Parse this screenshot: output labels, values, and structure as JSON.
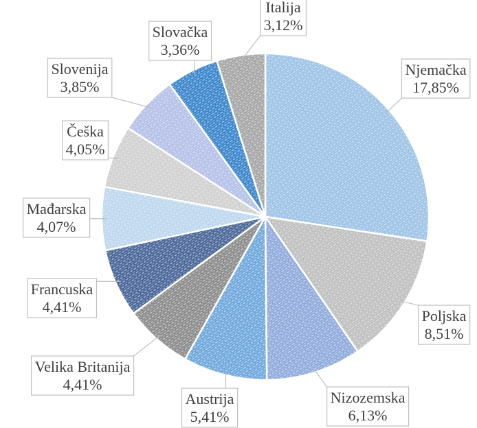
{
  "chart_data": {
    "type": "pie",
    "categories": [
      "Njemačka",
      "Poljska",
      "Nizozemska",
      "Austrija",
      "Velika Britanija",
      "Francuska",
      "Mađarska",
      "Češka",
      "Slovenija",
      "Slovačka",
      "Italija"
    ],
    "values": [
      17.85,
      8.51,
      6.13,
      5.41,
      4.41,
      4.41,
      4.07,
      4.05,
      3.85,
      3.36,
      3.12
    ],
    "value_labels": [
      "17,85%",
      "8,51%",
      "6,13%",
      "5,41%",
      "4,41%",
      "4,41%",
      "4,07%",
      "4,05%",
      "3,85%",
      "3,36%",
      "3,12%"
    ],
    "colors": [
      "#9dc3e6",
      "#bfbfbf",
      "#8faadc",
      "#6fa8dc",
      "#8c8c8c",
      "#4a6799",
      "#bdd7ee",
      "#d0d0d0",
      "#b4c0e8",
      "#3b86cc",
      "#a6a6a6"
    ]
  }
}
